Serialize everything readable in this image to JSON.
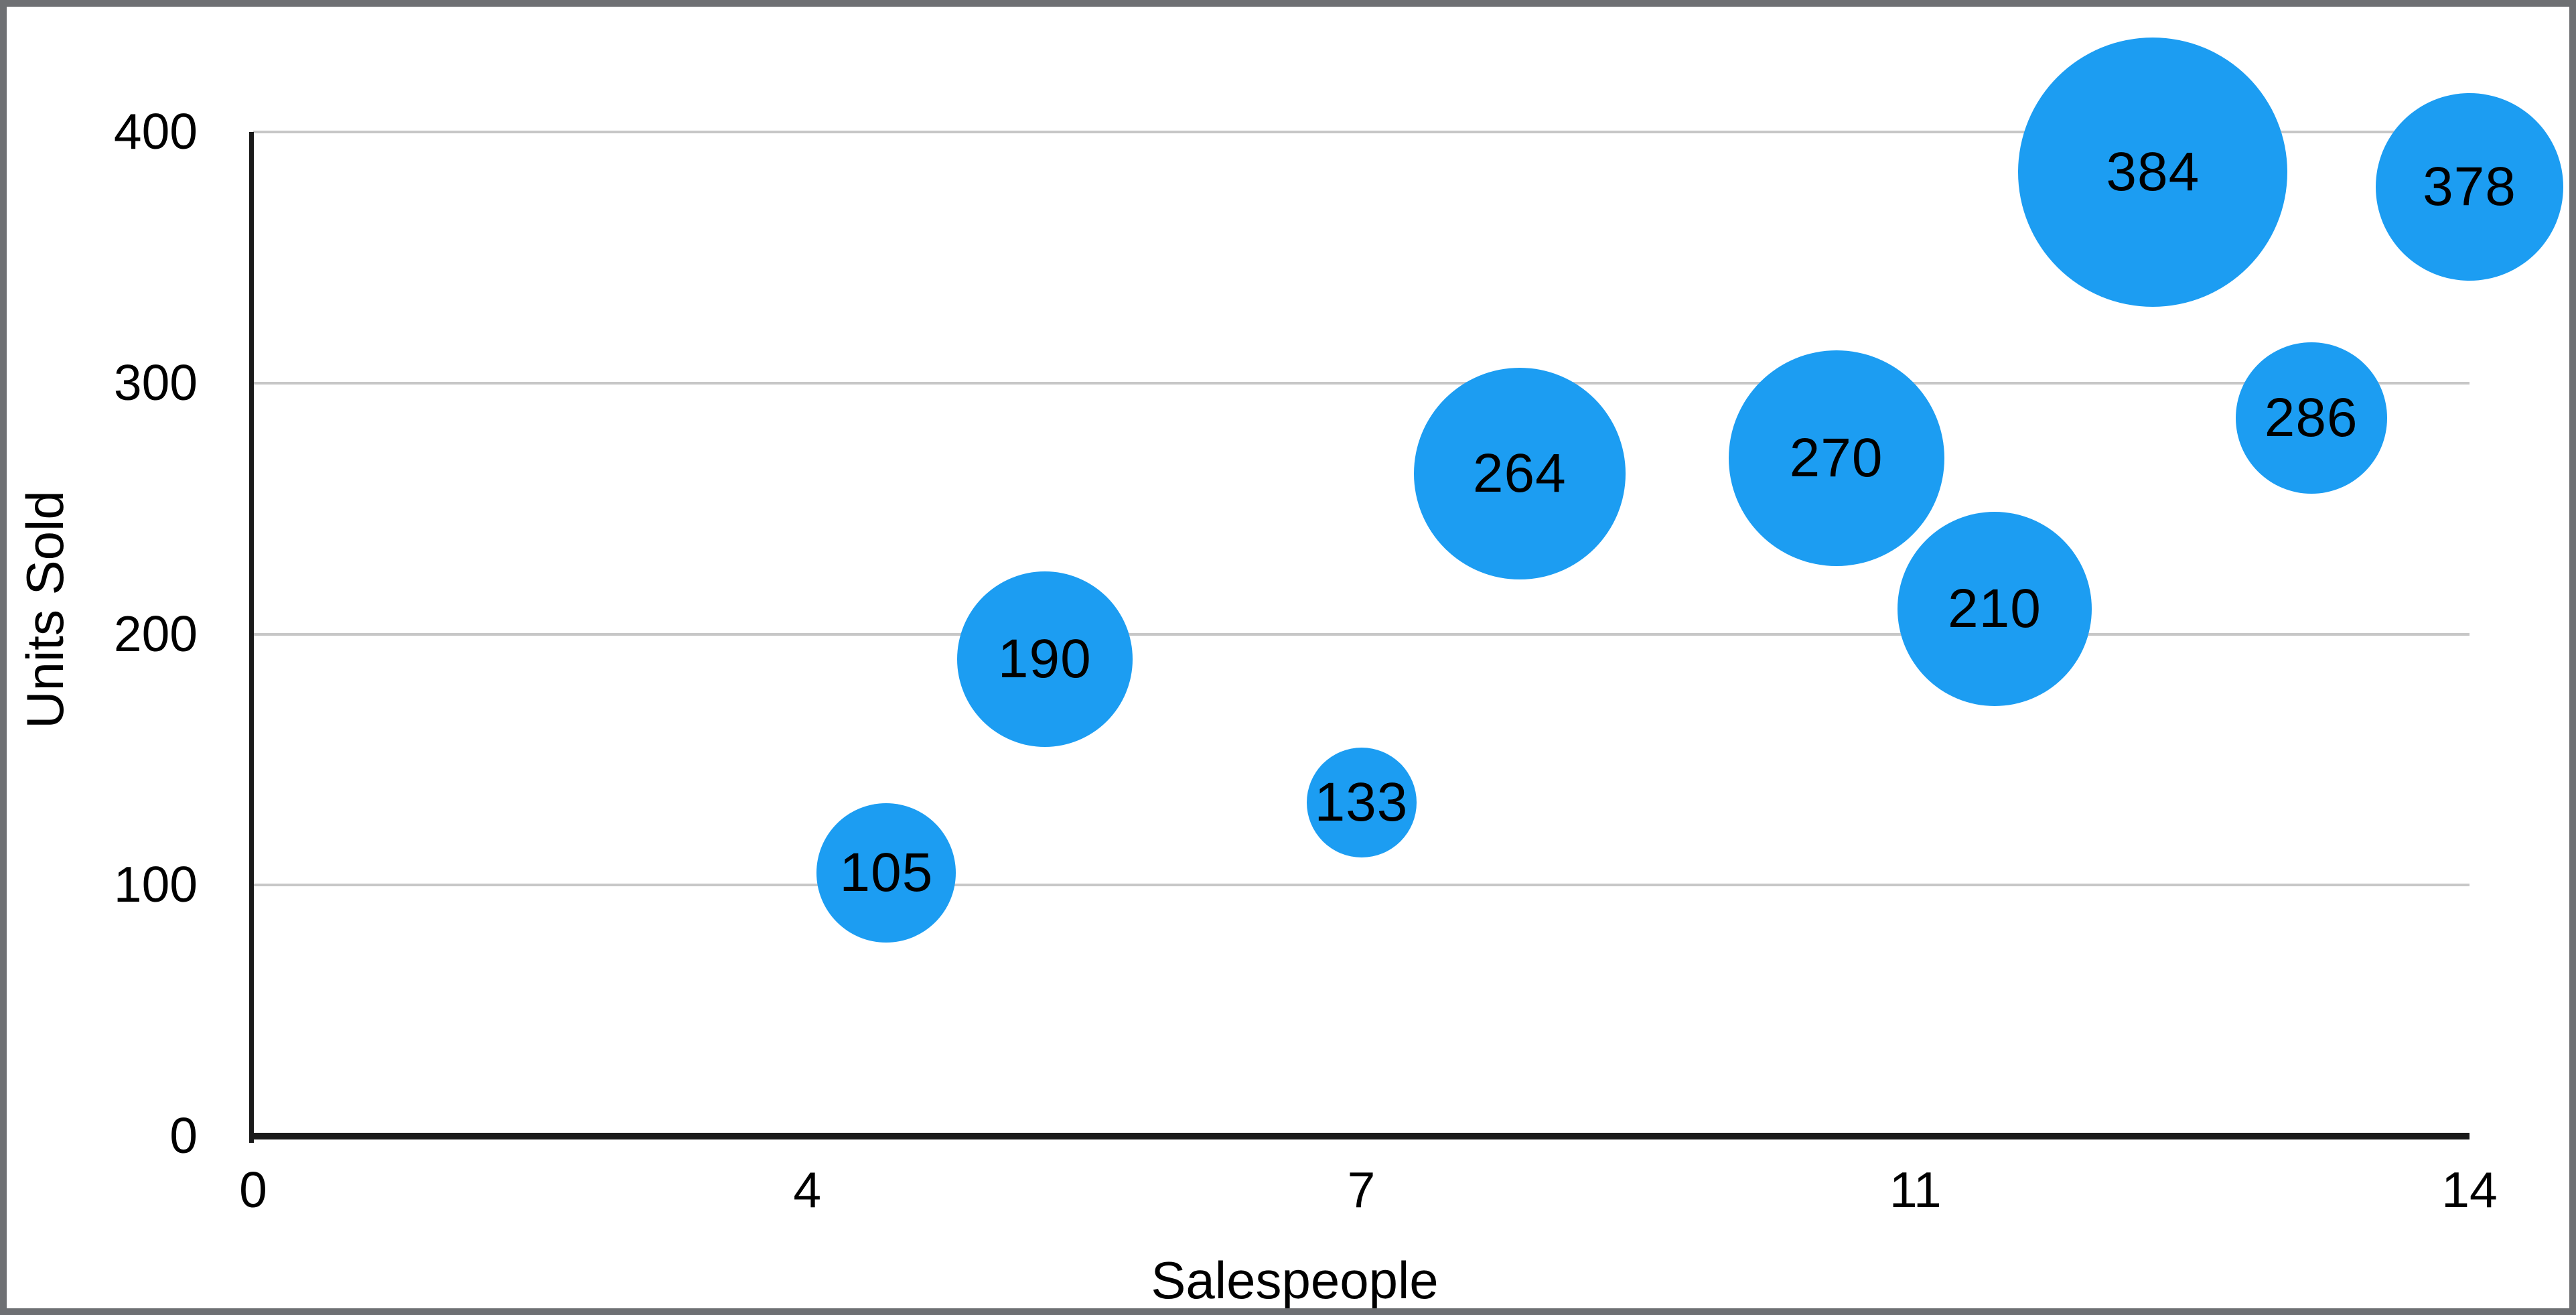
{
  "chart_data": {
    "type": "scatter",
    "subtype": "bubble",
    "title": "",
    "xlabel": "Salespeople",
    "ylabel": "Units Sold",
    "xlim": [
      0,
      14
    ],
    "ylim": [
      0,
      400
    ],
    "grid": "horizontal-gridlines-only",
    "legend": "none",
    "x_ticks": [
      {
        "pos": 0,
        "label": "0"
      },
      {
        "pos": 3.5,
        "label": "4"
      },
      {
        "pos": 7,
        "label": "7"
      },
      {
        "pos": 10.5,
        "label": "11"
      },
      {
        "pos": 14,
        "label": "14"
      }
    ],
    "y_ticks": [
      {
        "pos": 0,
        "label": "0"
      },
      {
        "pos": 100,
        "label": "100"
      },
      {
        "pos": 200,
        "label": "200"
      },
      {
        "pos": 300,
        "label": "300"
      },
      {
        "pos": 400,
        "label": "400"
      }
    ],
    "points": [
      {
        "salespeople": 4,
        "units_sold": 105,
        "label": "105",
        "radius_px": 104
      },
      {
        "salespeople": 5,
        "units_sold": 190,
        "label": "190",
        "radius_px": 131
      },
      {
        "salespeople": 7,
        "units_sold": 133,
        "label": "133",
        "radius_px": 82
      },
      {
        "salespeople": 8,
        "units_sold": 264,
        "label": "264",
        "radius_px": 158
      },
      {
        "salespeople": 10,
        "units_sold": 270,
        "label": "270",
        "radius_px": 161
      },
      {
        "salespeople": 11,
        "units_sold": 210,
        "label": "210",
        "radius_px": 145
      },
      {
        "salespeople": 12,
        "units_sold": 384,
        "label": "384",
        "radius_px": 201
      },
      {
        "salespeople": 13,
        "units_sold": 286,
        "label": "286",
        "radius_px": 113
      },
      {
        "salespeople": 14,
        "units_sold": 378,
        "label": "378",
        "radius_px": 140
      }
    ]
  },
  "colors": {
    "bubble_fill": "#1c9df2",
    "bubble_label": "#000000",
    "gridline": "#c7c7c7",
    "axis_line": "#1a1a1a",
    "tick_label": "#000000",
    "frame_border": "#6e7073",
    "background": "#ffffff"
  }
}
